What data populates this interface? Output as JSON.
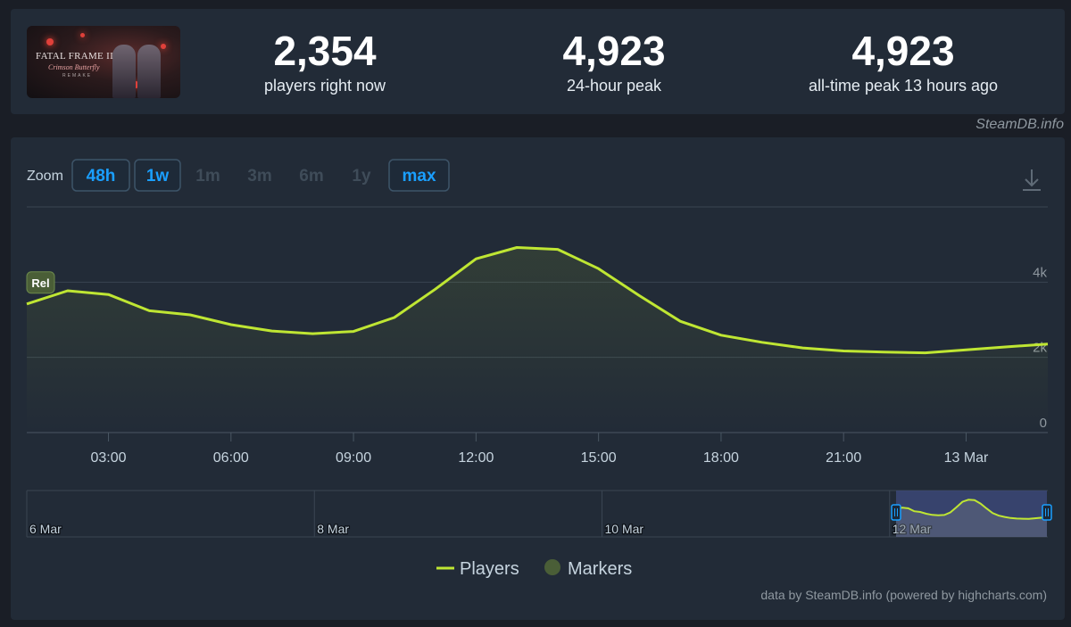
{
  "game": {
    "capsule_title": "FATAL FRAME II",
    "capsule_subtitle": "Crimson Butterfly",
    "capsule_tagline": "REMAKE"
  },
  "stats": [
    {
      "value": "2,354",
      "label": "players right now"
    },
    {
      "value": "4,923",
      "label": "24-hour peak"
    },
    {
      "value": "4,923",
      "label": "all-time peak 13 hours ago"
    }
  ],
  "credit_top": "SteamDB.info",
  "zoom": {
    "label": "Zoom",
    "buttons": [
      {
        "label": "48h",
        "active": true
      },
      {
        "label": "1w",
        "active": true
      },
      {
        "label": "1m",
        "active": false
      },
      {
        "label": "3m",
        "active": false
      },
      {
        "label": "6m",
        "active": false
      },
      {
        "label": "1y",
        "active": false
      },
      {
        "label": "max",
        "active": true
      }
    ]
  },
  "colors": {
    "line": "#bfe633",
    "grid": "#3a4552",
    "axis_text": "#8f98a0",
    "zoom_active": "#1a9fff",
    "marker": "#4a5e37",
    "navigator_highlight": "#3d4a7a"
  },
  "chart_data": {
    "type": "line",
    "series": [
      {
        "name": "Players",
        "x": [
          1,
          2,
          3,
          4,
          5,
          6,
          7,
          8,
          9,
          10,
          11,
          12,
          13,
          14,
          15,
          16,
          17,
          18,
          19,
          20,
          21,
          22,
          23,
          24,
          25,
          26
        ],
        "values": [
          3420,
          3770,
          3670,
          3240,
          3130,
          2870,
          2700,
          2630,
          2690,
          3060,
          3810,
          4620,
          4920,
          4870,
          4360,
          3640,
          2960,
          2590,
          2400,
          2250,
          2170,
          2140,
          2120,
          2200,
          2280,
          2354
        ]
      }
    ],
    "x_range": [
      1,
      26
    ],
    "x_ticks": [
      {
        "x": 3,
        "label": "03:00"
      },
      {
        "x": 6,
        "label": "06:00"
      },
      {
        "x": 9,
        "label": "09:00"
      },
      {
        "x": 12,
        "label": "12:00"
      },
      {
        "x": 15,
        "label": "15:00"
      },
      {
        "x": 18,
        "label": "18:00"
      },
      {
        "x": 21,
        "label": "21:00"
      },
      {
        "x": 24,
        "label": "13 Mar"
      }
    ],
    "ylim": [
      0,
      6000
    ],
    "y_ticks": [
      {
        "value": 0,
        "label": "0"
      },
      {
        "value": 2000,
        "label": "2k"
      },
      {
        "value": 4000,
        "label": "4k"
      }
    ],
    "markers": [
      {
        "x": 1,
        "label": "Rel"
      }
    ],
    "navigator": {
      "labels": [
        "6 Mar",
        "8 Mar",
        "10 Mar",
        "12 Mar"
      ],
      "selected_range": [
        "12 Mar",
        "13 Mar"
      ]
    },
    "legend": [
      {
        "name": "Players",
        "kind": "line"
      },
      {
        "name": "Markers",
        "kind": "dot"
      }
    ],
    "credit": "data by SteamDB.info (powered by highcharts.com)"
  }
}
